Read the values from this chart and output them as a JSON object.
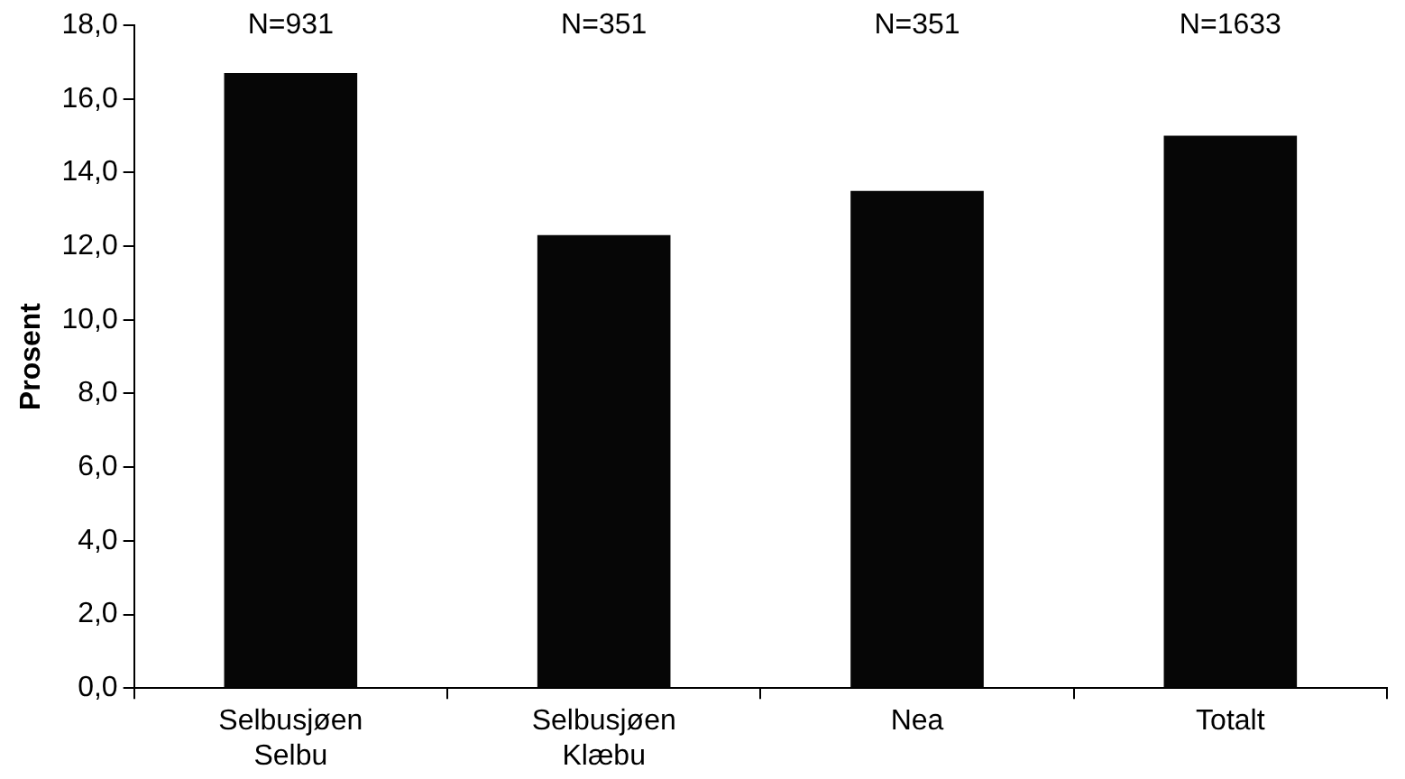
{
  "chart_data": {
    "type": "bar",
    "ylabel": "Prosent",
    "categories": [
      "Selbusjøen Selbu",
      "Selbusjøen Klæbu",
      "Nea",
      "Totalt"
    ],
    "values": [
      16.7,
      12.3,
      13.5,
      15.0
    ],
    "color": "#060606",
    "ylim": [
      0,
      18
    ],
    "yticks": [
      {
        "value": 0,
        "label": "0,0"
      },
      {
        "value": 2,
        "label": "2,0"
      },
      {
        "value": 4,
        "label": "4,0"
      },
      {
        "value": 6,
        "label": "6,0"
      },
      {
        "value": 8,
        "label": "8,0"
      },
      {
        "value": 10,
        "label": "10,0"
      },
      {
        "value": 12,
        "label": "12,0"
      },
      {
        "value": 14,
        "label": "14,0"
      },
      {
        "value": 16,
        "label": "16,0"
      },
      {
        "value": 18,
        "label": "18,0"
      }
    ],
    "annotations": [
      "N=931",
      "N=351",
      "N=351",
      "N=1633"
    ],
    "grid": false,
    "legend": false
  }
}
